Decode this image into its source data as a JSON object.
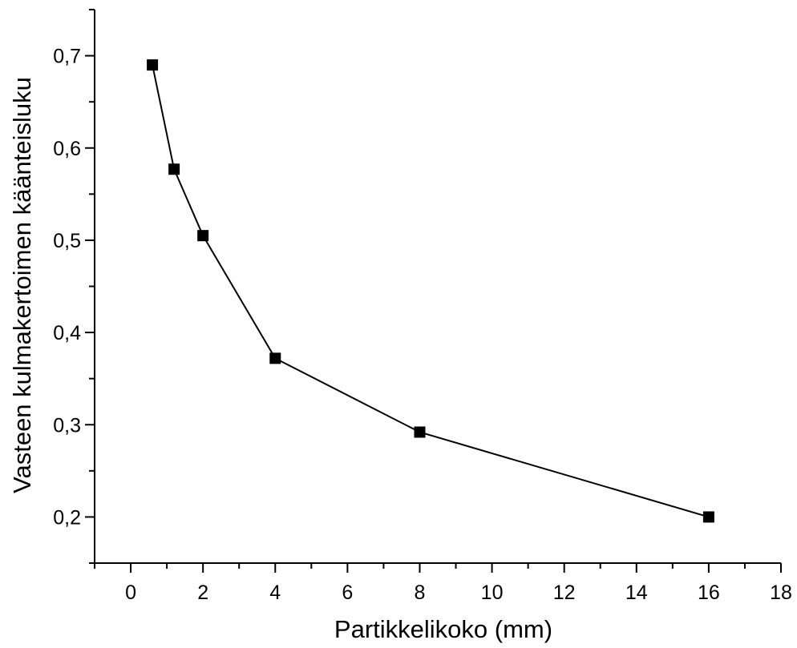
{
  "chart_data": {
    "type": "line",
    "title": "",
    "xlabel": "Partikkelikoko (mm)",
    "ylabel": "Vasteen kulmakertoimen käänteisluku",
    "xlim": [
      -1,
      18
    ],
    "ylim": [
      0.15,
      0.75
    ],
    "x_ticks": [
      0,
      2,
      4,
      6,
      8,
      10,
      12,
      14,
      16,
      18
    ],
    "x_tick_labels": [
      "0",
      "2",
      "4",
      "6",
      "8",
      "10",
      "12",
      "14",
      "16",
      "18"
    ],
    "y_ticks": [
      0.2,
      0.3,
      0.4,
      0.5,
      0.6,
      0.7
    ],
    "y_tick_labels": [
      "0,2",
      "0,3",
      "0,4",
      "0,5",
      "0,6",
      "0,7"
    ],
    "grid": false,
    "legend": "none",
    "marker": "square",
    "color": "#000000",
    "series": [
      {
        "x": [
          0.6,
          1.2,
          2,
          4,
          8,
          16
        ],
        "y": [
          0.69,
          0.577,
          0.505,
          0.372,
          0.292,
          0.2
        ]
      }
    ]
  }
}
